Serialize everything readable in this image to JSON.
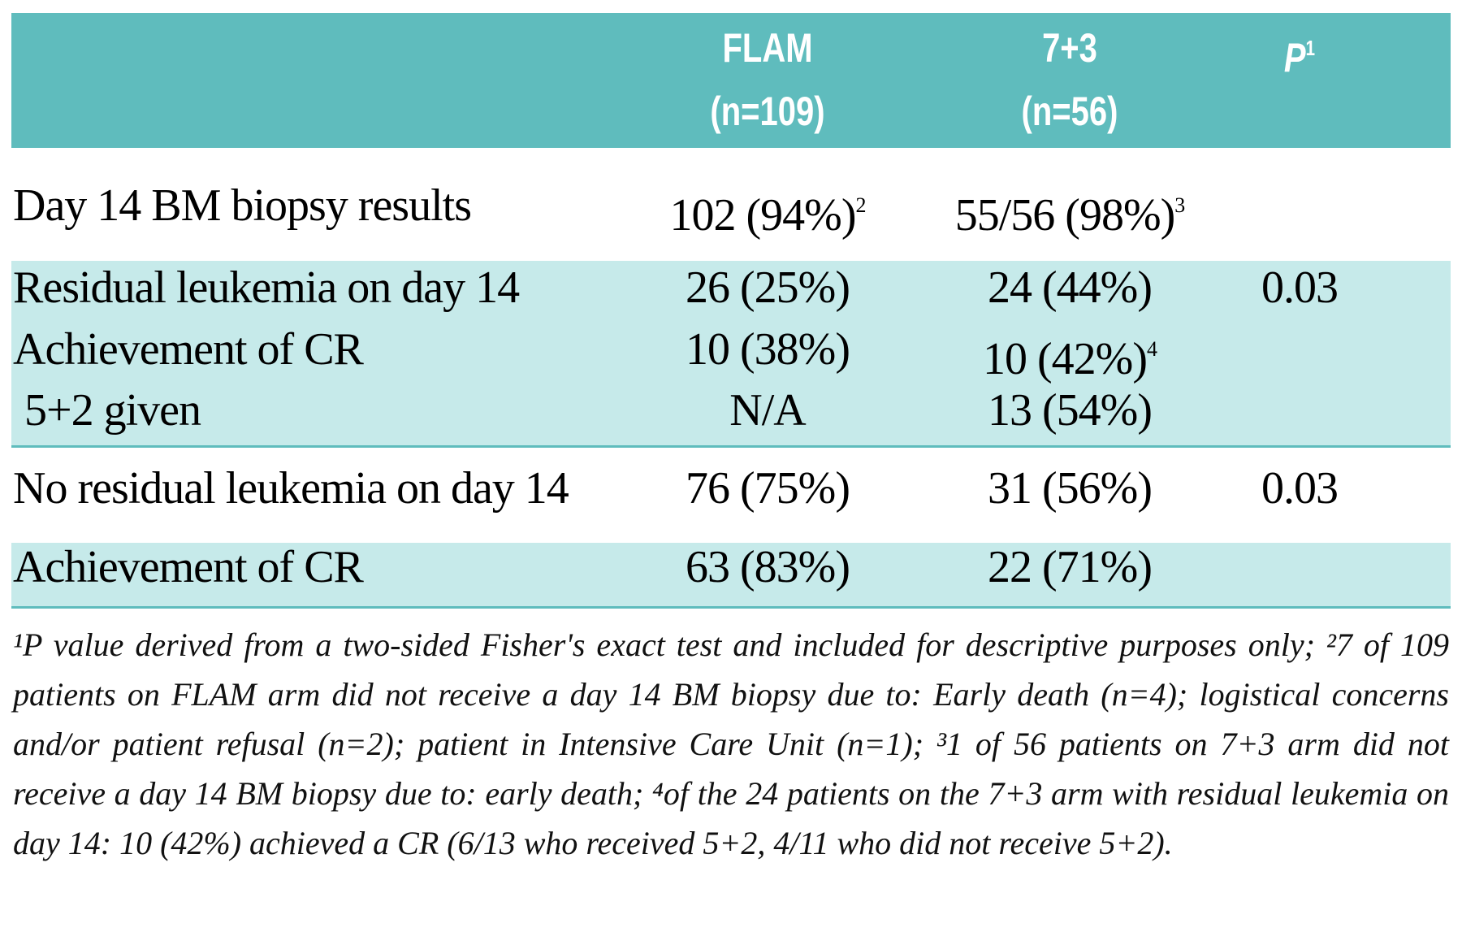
{
  "header": {
    "columns": [
      {
        "name": "FLAM",
        "n": "(n=109)"
      },
      {
        "name": "7+3",
        "n": "(n=56)"
      },
      {
        "name": "P",
        "sup": "1"
      }
    ]
  },
  "sections": [
    {
      "shaded": false,
      "rows": [
        {
          "label": "Day 14 BM biopsy results",
          "cells": [
            {
              "text": "102 (94%)",
              "sup": "2"
            },
            {
              "text": "55/56 (98%)",
              "sup": "3"
            },
            null
          ]
        }
      ]
    },
    {
      "shaded": true,
      "rows": [
        {
          "label": "Residual leukemia on day 14",
          "cells": [
            {
              "text": "26 (25%)"
            },
            {
              "text": "24 (44%)"
            },
            {
              "text": "0.03"
            }
          ]
        },
        {
          "label": "Achievement of CR",
          "cells": [
            {
              "text": "10 (38%)"
            },
            {
              "text": "10 (42%)",
              "sup": "4"
            },
            null
          ]
        },
        {
          "label": "5+2 given",
          "indent": true,
          "cells": [
            {
              "text": "N/A"
            },
            {
              "text": "13 (54%)"
            },
            null
          ]
        }
      ]
    },
    {
      "shaded": false,
      "rows": [
        {
          "label": "No residual leukemia on day 14",
          "cells": [
            {
              "text": "76 (75%)"
            },
            {
              "text": "31 (56%)"
            },
            {
              "text": "0.03"
            }
          ]
        }
      ]
    },
    {
      "shaded": true,
      "rows": [
        {
          "label": "Achievement of CR",
          "cells": [
            {
              "text": "63 (83%)"
            },
            {
              "text": "22 (71%)"
            },
            null
          ]
        }
      ]
    }
  ],
  "footnote": "¹P value derived from a two-sided Fisher's exact test and included for descriptive purposes only; ²7 of 109 patients on FLAM arm did not receive a day 14 BM biopsy due to: Early death (n=4); logistical concerns and/or patient refusal (n=2); patient in Intensive Care Unit (n=1); ³1 of 56 patients on 7+3 arm did not receive a day 14 BM biopsy due to: early death; ⁴of the 24 patients on the 7+3 arm with residual leukemia on day 14: 10 (42%) achieved a CR (6/13 who received 5+2, 4/11 who did not receive 5+2)."
}
